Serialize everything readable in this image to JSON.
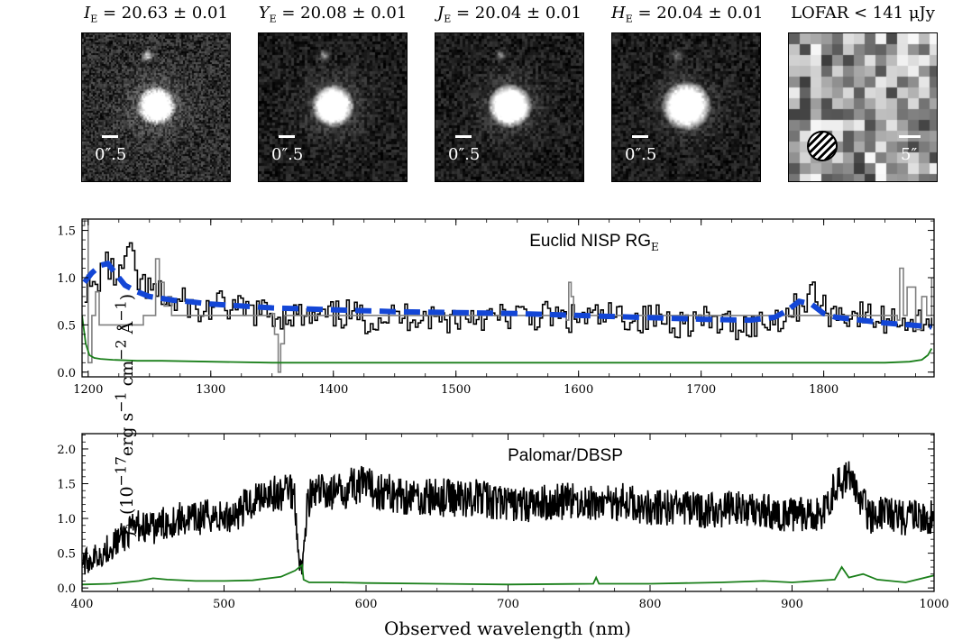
{
  "cutouts": [
    {
      "band_symbol": "I",
      "band_sub": "E",
      "value_text": " = 20.63 ± 0.01",
      "scale_label": "0″.5"
    },
    {
      "band_symbol": "Y",
      "band_sub": "E",
      "value_text": " = 20.08 ± 0.01",
      "scale_label": "0″.5"
    },
    {
      "band_symbol": "J",
      "band_sub": "E",
      "value_text": " = 20.04 ± 0.01",
      "scale_label": "0″.5"
    },
    {
      "band_symbol": "H",
      "band_sub": "E",
      "value_text": " = 20.04 ± 0.01",
      "scale_label": "0″.5"
    },
    {
      "band_symbol": "",
      "band_sub": "",
      "value_text": "LOFAR < 141 μJy",
      "scale_label": "5″"
    }
  ],
  "shared_ylabel": "f_λ (10^-17 erg s^-1 cm^-2 Å^-1)",
  "shared_xlabel": "Observed wavelength (nm)",
  "colors": {
    "data": "#000000",
    "masked": "#808080",
    "error": "#1a7f1a",
    "model": "#1346d6"
  },
  "chart_data": [
    {
      "type": "line",
      "title": "Euclid NISP RG_E",
      "xlim": [
        1195,
        1890
      ],
      "ylim": [
        -0.05,
        1.62
      ],
      "xticks": [
        1200,
        1300,
        1400,
        1500,
        1600,
        1700,
        1800
      ],
      "yticks": [
        0.0,
        0.5,
        1.0,
        1.5
      ],
      "ytick_labels": [
        "0.0",
        "0.5",
        "1.0",
        "1.5"
      ],
      "series": [
        {
          "style": "steps",
          "color": "data",
          "x": [
            1197,
            1205,
            1212,
            1218,
            1225,
            1232,
            1240,
            1250,
            1260,
            1270,
            1280,
            1290,
            1300,
            1310,
            1320,
            1335,
            1350,
            1365,
            1380,
            1395,
            1410,
            1425,
            1440,
            1455,
            1470,
            1485,
            1500,
            1515,
            1530,
            1545,
            1560,
            1575,
            1590,
            1605,
            1620,
            1635,
            1650,
            1665,
            1680,
            1695,
            1710,
            1725,
            1740,
            1755,
            1770,
            1780,
            1790,
            1800,
            1815,
            1830,
            1845,
            1860,
            1875,
            1888
          ],
          "y": [
            0.9,
            0.85,
            1.2,
            1.05,
            1.0,
            1.3,
            0.95,
            0.85,
            0.8,
            0.7,
            0.75,
            0.6,
            0.7,
            0.7,
            0.65,
            0.65,
            0.6,
            0.62,
            0.55,
            0.58,
            0.62,
            0.55,
            0.6,
            0.58,
            0.62,
            0.55,
            0.58,
            0.62,
            0.56,
            0.6,
            0.58,
            0.6,
            0.55,
            0.58,
            0.57,
            0.6,
            0.55,
            0.58,
            0.52,
            0.55,
            0.52,
            0.5,
            0.5,
            0.55,
            0.62,
            0.72,
            0.85,
            0.65,
            0.62,
            0.6,
            0.55,
            0.58,
            0.52,
            0.6
          ]
        },
        {
          "style": "steps",
          "color": "masked",
          "x": [
            1195,
            1197,
            1200,
            1203,
            1206,
            1209,
            1245,
            1255,
            1258,
            1262,
            1265,
            1268,
            1350,
            1352,
            1355,
            1357,
            1360,
            1590,
            1592,
            1594,
            1596,
            1860,
            1862,
            1865,
            1868,
            1875,
            1880,
            1884,
            1888
          ],
          "y": [
            1.55,
            1.6,
            0.1,
            0.6,
            0.85,
            0.5,
            0.6,
            1.2,
            0.95,
            0.7,
            0.8,
            0.6,
            0.62,
            0.4,
            0.0,
            0.3,
            0.6,
            0.55,
            0.95,
            0.8,
            0.6,
            0.55,
            1.1,
            0.6,
            0.9,
            0.45,
            0.8,
            0.6,
            1.0
          ]
        },
        {
          "style": "dashed",
          "color": "model",
          "x": [
            1197,
            1203,
            1210,
            1216,
            1222,
            1230,
            1240,
            1250,
            1260,
            1270,
            1280,
            1300,
            1350,
            1400,
            1450,
            1500,
            1550,
            1600,
            1650,
            1700,
            1740,
            1760,
            1770,
            1780,
            1790,
            1800,
            1810,
            1830,
            1850,
            1870,
            1888
          ],
          "y": [
            0.95,
            1.05,
            1.13,
            1.15,
            1.05,
            0.92,
            0.85,
            0.8,
            0.78,
            0.76,
            0.75,
            0.72,
            0.68,
            0.66,
            0.64,
            0.63,
            0.62,
            0.6,
            0.58,
            0.56,
            0.55,
            0.58,
            0.65,
            0.75,
            0.72,
            0.62,
            0.58,
            0.55,
            0.52,
            0.5,
            0.48
          ]
        },
        {
          "style": "solid",
          "color": "error",
          "x": [
            1195,
            1198,
            1201,
            1205,
            1210,
            1220,
            1240,
            1260,
            1300,
            1350,
            1400,
            1500,
            1600,
            1700,
            1800,
            1850,
            1870,
            1880,
            1885,
            1888
          ],
          "y": [
            0.6,
            0.3,
            0.18,
            0.15,
            0.14,
            0.13,
            0.12,
            0.12,
            0.11,
            0.1,
            0.1,
            0.1,
            0.1,
            0.1,
            0.1,
            0.1,
            0.11,
            0.13,
            0.18,
            0.25
          ]
        }
      ]
    },
    {
      "type": "line",
      "title": "Palomar/DBSP",
      "xlim": [
        400,
        1000
      ],
      "ylim": [
        -0.05,
        2.22
      ],
      "xticks": [
        400,
        500,
        600,
        700,
        800,
        900,
        1000
      ],
      "yticks": [
        0.0,
        0.5,
        1.0,
        1.5,
        2.0
      ],
      "ytick_labels": [
        "0.0",
        "0.5",
        "1.0",
        "1.5",
        "2.0"
      ],
      "series": [
        {
          "style": "noisy",
          "color": "data",
          "x": [
            400,
            410,
            420,
            430,
            440,
            450,
            460,
            470,
            480,
            490,
            500,
            510,
            520,
            530,
            540,
            545,
            550,
            552,
            555,
            558,
            560,
            570,
            580,
            590,
            600,
            620,
            640,
            660,
            680,
            700,
            720,
            740,
            760,
            780,
            800,
            820,
            840,
            860,
            880,
            900,
            920,
            930,
            940,
            945,
            950,
            955,
            960,
            970,
            980,
            990,
            1000
          ],
          "y": [
            0.35,
            0.45,
            0.6,
            0.75,
            0.9,
            0.85,
            0.95,
            1.0,
            0.98,
            1.05,
            1.0,
            1.1,
            1.25,
            1.4,
            1.3,
            1.5,
            1.3,
            0.6,
            0.2,
            1.1,
            1.3,
            1.4,
            1.35,
            1.5,
            1.45,
            1.35,
            1.3,
            1.3,
            1.3,
            1.2,
            1.2,
            1.25,
            1.2,
            1.25,
            1.15,
            1.15,
            1.1,
            1.15,
            1.1,
            1.05,
            1.05,
            1.4,
            1.6,
            1.4,
            1.2,
            1.0,
            1.1,
            1.05,
            1.0,
            1.05,
            1.0
          ]
        },
        {
          "style": "solid",
          "color": "error",
          "x": [
            400,
            420,
            440,
            450,
            460,
            480,
            500,
            520,
            540,
            550,
            555,
            556,
            560,
            580,
            600,
            650,
            700,
            760,
            762,
            764,
            800,
            850,
            880,
            900,
            930,
            935,
            940,
            950,
            960,
            980,
            1000
          ],
          "y": [
            0.05,
            0.06,
            0.1,
            0.14,
            0.12,
            0.1,
            0.1,
            0.11,
            0.16,
            0.25,
            0.33,
            0.12,
            0.08,
            0.08,
            0.07,
            0.06,
            0.05,
            0.06,
            0.15,
            0.06,
            0.06,
            0.08,
            0.1,
            0.08,
            0.12,
            0.3,
            0.15,
            0.2,
            0.12,
            0.08,
            0.18
          ]
        }
      ]
    }
  ]
}
